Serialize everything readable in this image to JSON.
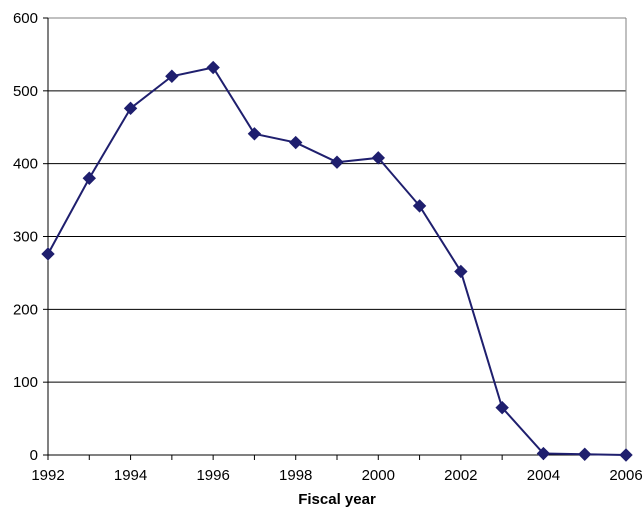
{
  "chart_data": {
    "type": "line",
    "title": "",
    "xlabel": "Fiscal year",
    "ylabel": "",
    "xlim": [
      1992,
      2006
    ],
    "ylim": [
      0,
      600
    ],
    "x_ticks": [
      1992,
      1994,
      1996,
      1998,
      2000,
      2002,
      2004,
      2006
    ],
    "y_ticks": [
      0,
      100,
      200,
      300,
      400,
      500,
      600
    ],
    "grid": "horizontal",
    "legend": "none",
    "series": [
      {
        "color": "#1F1F6E",
        "marker": "diamond",
        "x": [
          1992,
          1993,
          1994,
          1995,
          1996,
          1997,
          1998,
          1999,
          2000,
          2001,
          2002,
          2003,
          2004,
          2005,
          2006
        ],
        "values": [
          276,
          380,
          476,
          520,
          532,
          441,
          429,
          402,
          408,
          342,
          252,
          65,
          2,
          1,
          0
        ]
      }
    ]
  }
}
